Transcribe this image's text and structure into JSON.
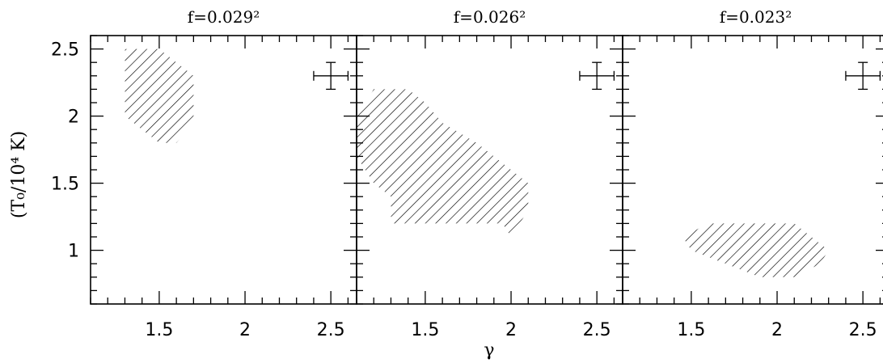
{
  "chart_data": {
    "type": "scatter",
    "xlabel": "γ",
    "ylabel": "(T₀/10⁴ K)",
    "xlim": [
      1.1,
      2.65
    ],
    "ylim": [
      0.6,
      2.6
    ],
    "x_ticks": [
      1.5,
      2,
      2.5
    ],
    "x_tick_labels": [
      "1.5",
      "2",
      "2.5"
    ],
    "y_ticks": [
      1,
      1.5,
      2,
      2.5
    ],
    "y_tick_labels": [
      "1",
      "1.5",
      "2",
      "2.5"
    ],
    "grid": false,
    "panels": [
      {
        "title": "f=0.029²",
        "region": [
          [
            1.3,
            2.5
          ],
          [
            1.5,
            2.5
          ],
          [
            1.7,
            2.3
          ],
          [
            1.7,
            1.95
          ],
          [
            1.6,
            1.8
          ],
          [
            1.5,
            1.8
          ],
          [
            1.4,
            1.9
          ],
          [
            1.3,
            2.0
          ]
        ],
        "error_bar": {
          "x": 2.5,
          "y": 2.3,
          "xerr": 0.1,
          "yerr": 0.1
        }
      },
      {
        "title": "f=0.026²",
        "region": [
          [
            1.1,
            2.0
          ],
          [
            1.2,
            2.2
          ],
          [
            1.4,
            2.2
          ],
          [
            1.5,
            2.1
          ],
          [
            1.6,
            1.95
          ],
          [
            1.8,
            1.8
          ],
          [
            2.0,
            1.6
          ],
          [
            2.1,
            1.5
          ],
          [
            2.1,
            1.3
          ],
          [
            2.0,
            1.1
          ],
          [
            1.95,
            1.2
          ],
          [
            1.3,
            1.2
          ],
          [
            1.3,
            1.4
          ],
          [
            1.2,
            1.5
          ],
          [
            1.1,
            1.7
          ]
        ],
        "error_bar": {
          "x": 2.5,
          "y": 2.3,
          "xerr": 0.1,
          "yerr": 0.1
        }
      },
      {
        "title": "f=0.023²",
        "region": [
          [
            1.45,
            1.1
          ],
          [
            1.6,
            1.2
          ],
          [
            2.1,
            1.2
          ],
          [
            2.2,
            1.1
          ],
          [
            2.3,
            1.0
          ],
          [
            2.25,
            0.9
          ],
          [
            2.1,
            0.8
          ],
          [
            1.9,
            0.8
          ],
          [
            1.5,
            1.0
          ]
        ],
        "error_bar": {
          "x": 2.5,
          "y": 2.3,
          "xerr": 0.1,
          "yerr": 0.1
        }
      }
    ]
  }
}
